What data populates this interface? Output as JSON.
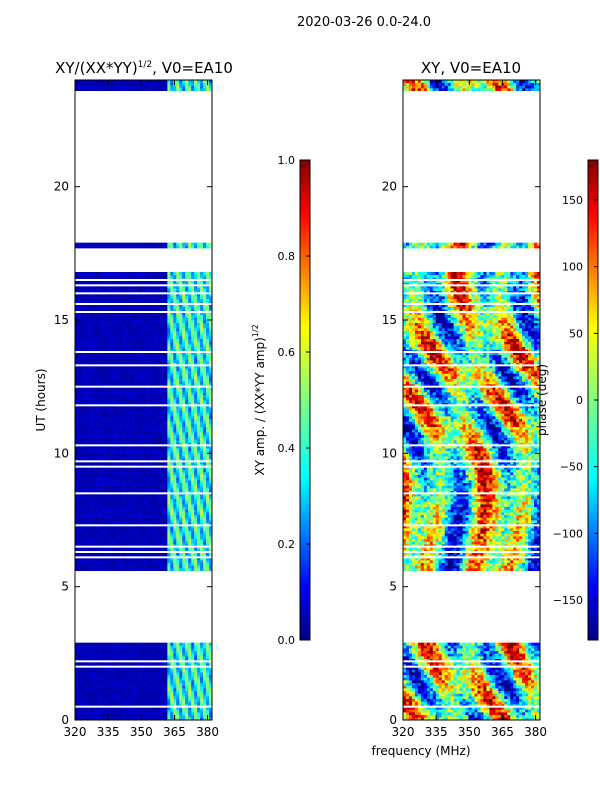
{
  "figure": {
    "suptitle": "2020-03-26 0.0-24.0",
    "xlabel_shared": "frequency (MHz)"
  },
  "colors": {
    "jet_stops": [
      "#00007f",
      "#0000ff",
      "#007fff",
      "#00ffff",
      "#7fff7f",
      "#ffff00",
      "#ff7f00",
      "#ff0000",
      "#7f0000"
    ],
    "bad_data": "#ffffff",
    "frame": "#000000"
  },
  "chart_data": [
    {
      "type": "heatmap",
      "title": "XY/(XX*YY)",
      "title_exp": "1/2",
      "title_suffix": ", V0=EA10",
      "xlabel": "",
      "ylabel": "UT (hours)",
      "xlim": [
        320,
        382
      ],
      "ylim": [
        0,
        24
      ],
      "xticks": [
        320,
        335,
        350,
        365,
        380
      ],
      "yticks": [
        0,
        5,
        10,
        15,
        20
      ],
      "valid_ut_ranges": [
        [
          0.0,
          2.9
        ],
        [
          5.6,
          16.8
        ],
        [
          17.75,
          17.85
        ],
        [
          23.6,
          24.0
        ]
      ],
      "gap_ut_lines": [
        0.5,
        2.0,
        2.2,
        6.1,
        6.3,
        6.5,
        7.3,
        8.5,
        9.5,
        9.7,
        10.3,
        11.8,
        12.5,
        13.3,
        13.8,
        15.3,
        15.6,
        16.0,
        16.3,
        16.5
      ],
      "bright_freq_band_mhz": [
        362,
        382
      ],
      "colorbar": {
        "label": "XY amp. / (XX*YY amp)",
        "label_exp": "1/2",
        "range": [
          0.0,
          1.0
        ],
        "ticks": [
          "0.0",
          "0.2",
          "0.4",
          "0.6",
          "0.8",
          "1.0"
        ]
      }
    },
    {
      "type": "heatmap",
      "title": "XY, V0=EA10",
      "xlabel": "",
      "ylabel": "",
      "xlim": [
        320,
        382
      ],
      "ylim": [
        0,
        24
      ],
      "xticks": [
        320,
        335,
        350,
        365,
        380
      ],
      "yticks": [
        0,
        5,
        10,
        15,
        20
      ],
      "valid_ut_ranges": [
        [
          0.0,
          2.9
        ],
        [
          5.6,
          16.8
        ],
        [
          17.75,
          17.85
        ],
        [
          23.6,
          24.0
        ]
      ],
      "gap_ut_lines": [
        0.5,
        2.0,
        2.2,
        6.1,
        6.3,
        6.5,
        7.3,
        8.5,
        9.5,
        9.7,
        10.3,
        11.8,
        12.5,
        13.3,
        13.8,
        15.3,
        15.6,
        16.0,
        16.3,
        16.5
      ],
      "colorbar": {
        "label": "phase (deg)",
        "range": [
          -180,
          180
        ],
        "ticks": [
          "150",
          "100",
          "50",
          "0",
          "−50",
          "−100",
          "−150"
        ],
        "tick_values": [
          150,
          100,
          50,
          0,
          -50,
          -100,
          -150
        ]
      }
    }
  ]
}
